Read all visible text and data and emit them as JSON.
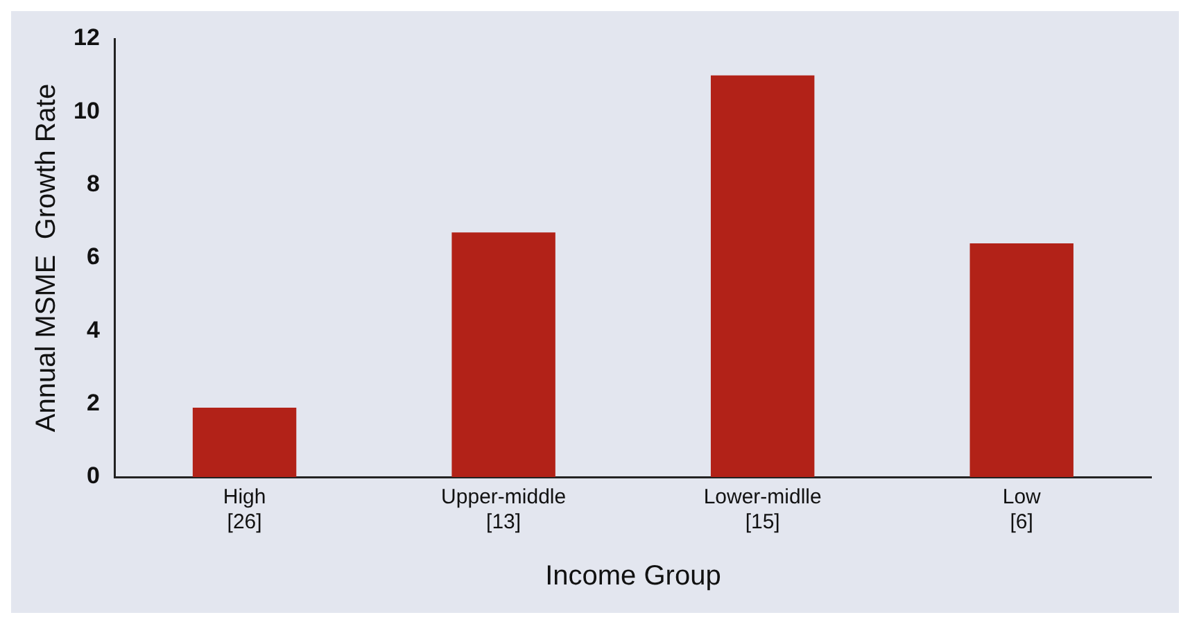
{
  "chart_data": {
    "type": "bar",
    "xlabel": "Income Group",
    "ylabel": "Annual MSME  Growth Rate",
    "categories": [
      "High\n[26]",
      "Upper-middle\n[13]",
      "Lower-midlle\n[15]",
      "Low\n[6]"
    ],
    "values": [
      1.9,
      6.7,
      11,
      6.4
    ],
    "color": "#b22218",
    "ylim": [
      0,
      12
    ],
    "yticks": [
      0,
      2,
      4,
      6,
      8,
      10,
      12
    ],
    "grid": false
  }
}
